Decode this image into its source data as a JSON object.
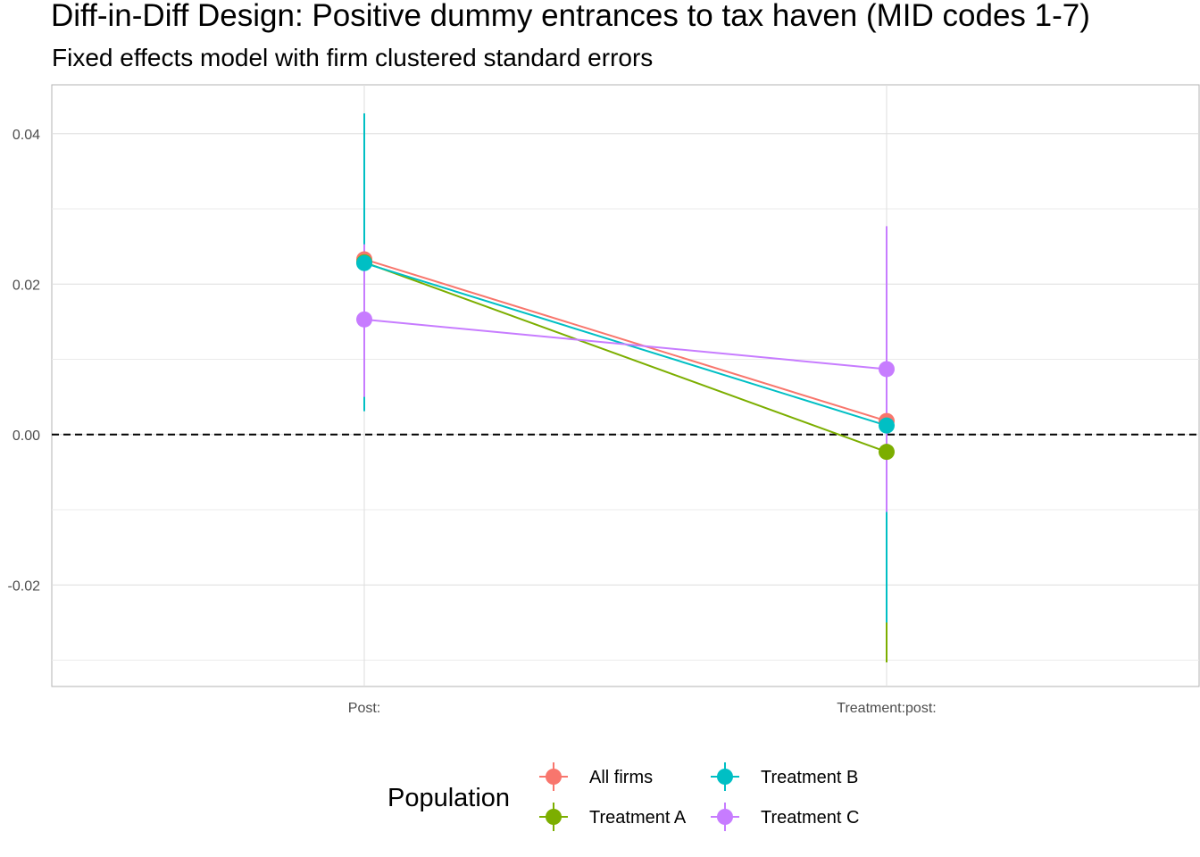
{
  "chart_data": {
    "type": "scatter",
    "title": "Diff-in-Diff Design: Positive dummy entrances to tax haven (MID codes 1-7)",
    "subtitle": "Fixed effects model with firm clustered standard errors",
    "xlabel": "",
    "ylabel": "",
    "categories": [
      "Post:",
      "Treatment:post:"
    ],
    "ylim": [
      -0.0335,
      0.0465
    ],
    "y_ticks": [
      -0.02,
      0.0,
      0.02,
      0.04
    ],
    "y_tick_labels": [
      "-0.02",
      "0.00",
      "0.02",
      "0.04"
    ],
    "reference_line": {
      "y": 0,
      "style": "dashed",
      "color": "#000000"
    },
    "grid": true,
    "legend": {
      "title": "Population",
      "position": "bottom",
      "columns": 2
    },
    "series": [
      {
        "name": "All firms",
        "color": "#F8766D",
        "values": [
          0.0233,
          0.0018
        ],
        "lower": [
          0.0233,
          0.0018
        ],
        "upper": [
          0.0233,
          0.0018
        ]
      },
      {
        "name": "Treatment A",
        "color": "#7CAE00",
        "values": [
          0.0229,
          -0.0023
        ],
        "lower": [
          0.0229,
          -0.0303
        ],
        "upper": [
          0.0229,
          -0.0023
        ]
      },
      {
        "name": "Treatment B",
        "color": "#00BFC4",
        "values": [
          0.0228,
          0.0012
        ],
        "lower": [
          0.0031,
          -0.025
        ],
        "upper": [
          0.0427,
          0.0012
        ]
      },
      {
        "name": "Treatment C",
        "color": "#C77CFF",
        "values": [
          0.0153,
          0.0087
        ],
        "lower": [
          0.005,
          -0.0103
        ],
        "upper": [
          0.0253,
          0.0277
        ]
      }
    ]
  }
}
